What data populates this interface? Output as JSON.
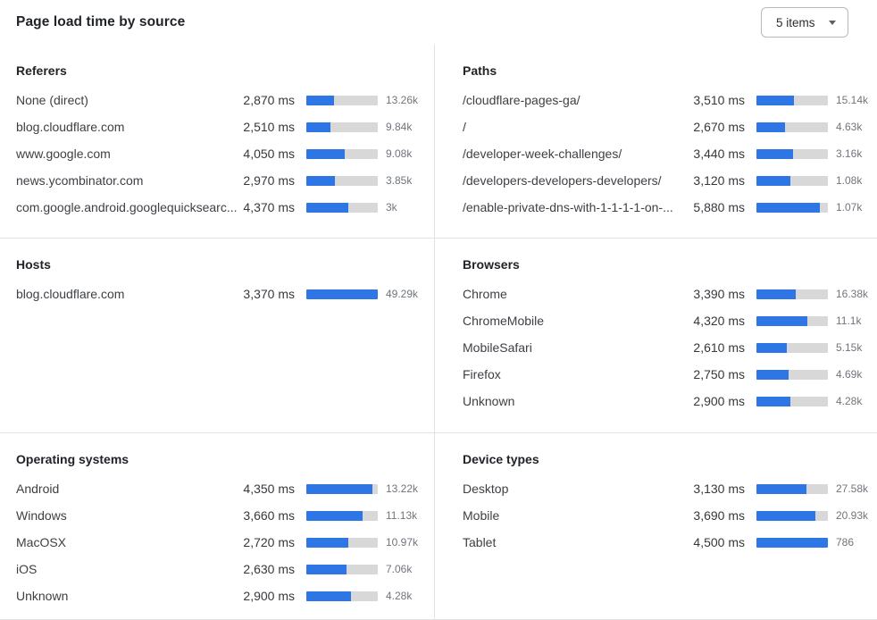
{
  "header": {
    "title": "Page load time by source",
    "items_dropdown": {
      "value": "5 items"
    }
  },
  "colors": {
    "bar_fill": "#2E75E5",
    "bar_track": "#D8D8D8",
    "divider": "#E3E3E3",
    "dropdown_border": "#B6BAC0"
  },
  "panels": [
    {
      "id": "referers",
      "title": "Referers",
      "rows": [
        {
          "label": "None (direct)",
          "ms": "2,870 ms",
          "ms_value": 2870,
          "count": "13.26k",
          "bar_pct": 38.3
        },
        {
          "label": "blog.cloudflare.com",
          "ms": "2,510 ms",
          "ms_value": 2510,
          "count": "9.84k",
          "bar_pct": 33.5
        },
        {
          "label": "www.google.com",
          "ms": "4,050 ms",
          "ms_value": 4050,
          "count": "9.08k",
          "bar_pct": 54.0
        },
        {
          "label": "news.ycombinator.com",
          "ms": "2,970 ms",
          "ms_value": 2970,
          "count": "3.85k",
          "bar_pct": 39.6
        },
        {
          "label": "com.google.android.googlequicksearc...",
          "ms": "4,370 ms",
          "ms_value": 4370,
          "count": "3k",
          "bar_pct": 58.3
        }
      ]
    },
    {
      "id": "paths",
      "title": "Paths",
      "rows": [
        {
          "label": "/cloudflare-pages-ga/",
          "ms": "3,510 ms",
          "ms_value": 3510,
          "count": "15.14k",
          "bar_pct": 52.8
        },
        {
          "label": "/",
          "ms": "2,670 ms",
          "ms_value": 2670,
          "count": "4.63k",
          "bar_pct": 40.2
        },
        {
          "label": "/developer-week-challenges/",
          "ms": "3,440 ms",
          "ms_value": 3440,
          "count": "3.16k",
          "bar_pct": 51.7
        },
        {
          "label": "/developers-developers-developers/",
          "ms": "3,120 ms",
          "ms_value": 3120,
          "count": "1.08k",
          "bar_pct": 46.9
        },
        {
          "label": "/enable-private-dns-with-1-1-1-1-on-...",
          "ms": "5,880 ms",
          "ms_value": 5880,
          "count": "1.07k",
          "bar_pct": 88.4
        }
      ]
    },
    {
      "id": "hosts",
      "title": "Hosts",
      "rows": [
        {
          "label": "blog.cloudflare.com",
          "ms": "3,370 ms",
          "ms_value": 3370,
          "count": "49.29k",
          "bar_pct": 100
        }
      ]
    },
    {
      "id": "browsers",
      "title": "Browsers",
      "rows": [
        {
          "label": "Chrome",
          "ms": "3,390 ms",
          "ms_value": 3390,
          "count": "16.38k",
          "bar_pct": 55.6
        },
        {
          "label": "ChromeMobile",
          "ms": "4,320 ms",
          "ms_value": 4320,
          "count": "11.1k",
          "bar_pct": 70.8
        },
        {
          "label": "MobileSafari",
          "ms": "2,610 ms",
          "ms_value": 2610,
          "count": "5.15k",
          "bar_pct": 42.8
        },
        {
          "label": "Firefox",
          "ms": "2,750 ms",
          "ms_value": 2750,
          "count": "4.69k",
          "bar_pct": 45.1
        },
        {
          "label": "Unknown",
          "ms": "2,900 ms",
          "ms_value": 2900,
          "count": "4.28k",
          "bar_pct": 47.5
        }
      ]
    },
    {
      "id": "operating-systems",
      "title": "Operating systems",
      "rows": [
        {
          "label": "Android",
          "ms": "4,350 ms",
          "ms_value": 4350,
          "count": "13.22k",
          "bar_pct": 93.1
        },
        {
          "label": "Windows",
          "ms": "3,660 ms",
          "ms_value": 3660,
          "count": "11.13k",
          "bar_pct": 78.4
        },
        {
          "label": "MacOSX",
          "ms": "2,720 ms",
          "ms_value": 2720,
          "count": "10.97k",
          "bar_pct": 58.2
        },
        {
          "label": "iOS",
          "ms": "2,630 ms",
          "ms_value": 2630,
          "count": "7.06k",
          "bar_pct": 56.3
        },
        {
          "label": "Unknown",
          "ms": "2,900 ms",
          "ms_value": 2900,
          "count": "4.28k",
          "bar_pct": 62.1
        }
      ]
    },
    {
      "id": "device-types",
      "title": "Device types",
      "rows": [
        {
          "label": "Desktop",
          "ms": "3,130 ms",
          "ms_value": 3130,
          "count": "27.58k",
          "bar_pct": 69.6
        },
        {
          "label": "Mobile",
          "ms": "3,690 ms",
          "ms_value": 3690,
          "count": "20.93k",
          "bar_pct": 82.0
        },
        {
          "label": "Tablet",
          "ms": "4,500 ms",
          "ms_value": 4500,
          "count": "786",
          "bar_pct": 100
        }
      ]
    }
  ]
}
